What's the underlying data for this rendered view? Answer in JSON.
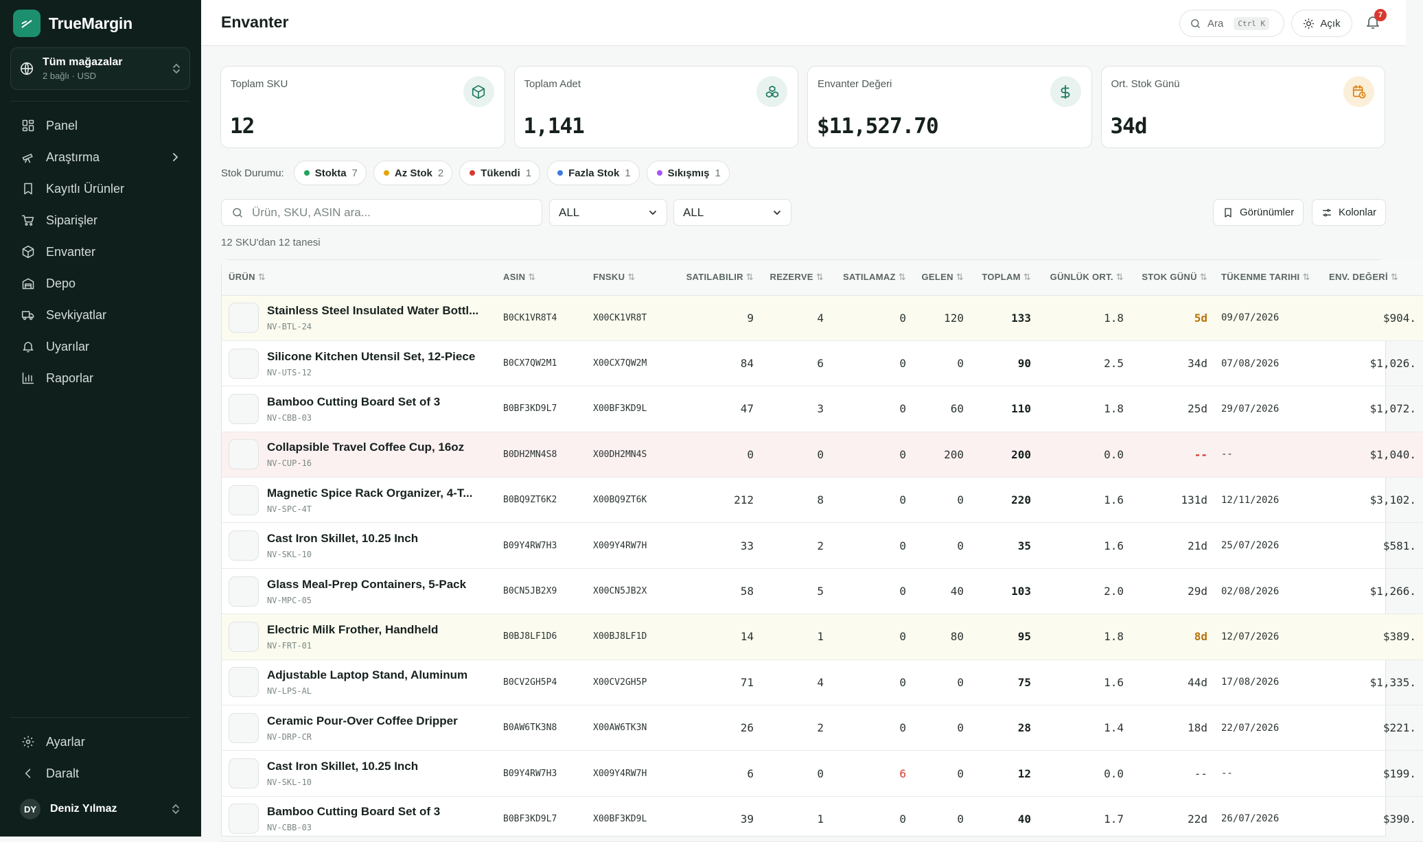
{
  "app": {
    "name": "TrueMargin"
  },
  "store": {
    "title": "Tüm mağazalar",
    "subtitle": "2 bağlı · USD"
  },
  "nav": {
    "items": [
      {
        "label": "Panel",
        "icon": "dashboard-icon"
      },
      {
        "label": "Araştırma",
        "icon": "telescope-icon",
        "has_chevron": true
      },
      {
        "label": "Kayıtlı Ürünler",
        "icon": "bookmark-icon"
      },
      {
        "label": "Siparişler",
        "icon": "cart-icon"
      },
      {
        "label": "Envanter",
        "icon": "box-icon"
      },
      {
        "label": "Depo",
        "icon": "warehouse-icon"
      },
      {
        "label": "Sevkiyatlar",
        "icon": "truck-icon"
      },
      {
        "label": "Uyarılar",
        "icon": "bell-icon"
      },
      {
        "label": "Raporlar",
        "icon": "chart-icon"
      }
    ],
    "bottom": [
      {
        "label": "Ayarlar",
        "icon": "gear-icon"
      },
      {
        "label": "Daralt",
        "icon": "chevron-left-icon"
      }
    ]
  },
  "user": {
    "initials": "DY",
    "name": "Deniz Yılmaz"
  },
  "header": {
    "title": "Envanter",
    "search_label": "Ara",
    "search_shortcut": "Ctrl K",
    "theme_label": "Açık",
    "notification_count": "7"
  },
  "cards": [
    {
      "label": "Toplam SKU",
      "value": "12",
      "icon": "box-icon"
    },
    {
      "label": "Toplam Adet",
      "value": "1,141",
      "icon": "boxes-icon"
    },
    {
      "label": "Envanter Değeri",
      "value": "$11,527.70",
      "icon": "dollar-icon"
    },
    {
      "label": "Ort. Stok Günü",
      "value": "34d",
      "icon": "calendar-clock-icon"
    }
  ],
  "status": {
    "label": "Stok Durumu:",
    "chips": [
      {
        "label": "Stokta",
        "count": "7",
        "color": "#22a55a"
      },
      {
        "label": "Az Stok",
        "count": "2",
        "color": "#e2a408"
      },
      {
        "label": "Tükendi",
        "count": "1",
        "color": "#d9382d"
      },
      {
        "label": "Fazla Stok",
        "count": "1",
        "color": "#3b7be0"
      },
      {
        "label": "Sıkışmış",
        "count": "1",
        "color": "#a855f7"
      }
    ]
  },
  "filters": {
    "search_placeholder": "Ürün, SKU, ASIN ara...",
    "select1": "ALL",
    "select2": "ALL",
    "views_label": "Görünümler",
    "columns_label": "Kolonlar",
    "count_text": "12 SKU'dan 12 tanesi"
  },
  "table": {
    "columns": [
      "ÜRÜN",
      "ASIN",
      "FNSKU",
      "SATILABILIR",
      "REZERVE",
      "SATILAMAZ",
      "GELEN",
      "TOPLAM",
      "GÜNLÜK ORT.",
      "STOK GÜNÜ",
      "TÜKENME TARIHI",
      "ENV. DEĞERİ"
    ],
    "rows": [
      {
        "name": "Stainless Steel Insulated Water Bottl...",
        "sku": "NV-BTL-24",
        "asin": "B0CK1VR8T4",
        "fnsku": "X00CK1VR8T",
        "sellable": "9",
        "reserved": "4",
        "unsellable": "0",
        "inbound": "120",
        "total": "133",
        "daily": "1.8",
        "days": "5d",
        "date": "09/07/2026",
        "value": "$904.",
        "state": "warn"
      },
      {
        "name": "Silicone Kitchen Utensil Set, 12-Piece",
        "sku": "NV-UTS-12",
        "asin": "B0CX7QW2M1",
        "fnsku": "X00CX7QW2M",
        "sellable": "84",
        "reserved": "6",
        "unsellable": "0",
        "inbound": "0",
        "total": "90",
        "daily": "2.5",
        "days": "34d",
        "date": "07/08/2026",
        "value": "$1,026.",
        "state": "ok"
      },
      {
        "name": "Bamboo Cutting Board Set of 3",
        "sku": "NV-CBB-03",
        "asin": "B0BF3KD9L7",
        "fnsku": "X00BF3KD9L",
        "sellable": "47",
        "reserved": "3",
        "unsellable": "0",
        "inbound": "60",
        "total": "110",
        "daily": "1.8",
        "days": "25d",
        "date": "29/07/2026",
        "value": "$1,072.",
        "state": "ok"
      },
      {
        "name": "Collapsible Travel Coffee Cup, 16oz",
        "sku": "NV-CUP-16",
        "asin": "B0DH2MN4S8",
        "fnsku": "X00DH2MN4S",
        "sellable": "0",
        "reserved": "0",
        "unsellable": "0",
        "inbound": "200",
        "total": "200",
        "daily": "0.0",
        "days": "--",
        "date": "--",
        "value": "$1,040.",
        "state": "out"
      },
      {
        "name": "Magnetic Spice Rack Organizer, 4-T...",
        "sku": "NV-SPC-4T",
        "asin": "B0BQ9ZT6K2",
        "fnsku": "X00BQ9ZT6K",
        "sellable": "212",
        "reserved": "8",
        "unsellable": "0",
        "inbound": "0",
        "total": "220",
        "daily": "1.6",
        "days": "131d",
        "date": "12/11/2026",
        "value": "$3,102.",
        "state": "ok"
      },
      {
        "name": "Cast Iron Skillet, 10.25 Inch",
        "sku": "NV-SKL-10",
        "asin": "B09Y4RW7H3",
        "fnsku": "X009Y4RW7H",
        "sellable": "33",
        "reserved": "2",
        "unsellable": "0",
        "inbound": "0",
        "total": "35",
        "daily": "1.6",
        "days": "21d",
        "date": "25/07/2026",
        "value": "$581.",
        "state": "ok"
      },
      {
        "name": "Glass Meal-Prep Containers, 5-Pack",
        "sku": "NV-MPC-05",
        "asin": "B0CN5JB2X9",
        "fnsku": "X00CN5JB2X",
        "sellable": "58",
        "reserved": "5",
        "unsellable": "0",
        "inbound": "40",
        "total": "103",
        "daily": "2.0",
        "days": "29d",
        "date": "02/08/2026",
        "value": "$1,266.",
        "state": "ok"
      },
      {
        "name": "Electric Milk Frother, Handheld",
        "sku": "NV-FRT-01",
        "asin": "B0BJ8LF1D6",
        "fnsku": "X00BJ8LF1D",
        "sellable": "14",
        "reserved": "1",
        "unsellable": "0",
        "inbound": "80",
        "total": "95",
        "daily": "1.8",
        "days": "8d",
        "date": "12/07/2026",
        "value": "$389.",
        "state": "warn"
      },
      {
        "name": "Adjustable Laptop Stand, Aluminum",
        "sku": "NV-LPS-AL",
        "asin": "B0CV2GH5P4",
        "fnsku": "X00CV2GH5P",
        "sellable": "71",
        "reserved": "4",
        "unsellable": "0",
        "inbound": "0",
        "total": "75",
        "daily": "1.6",
        "days": "44d",
        "date": "17/08/2026",
        "value": "$1,335.",
        "state": "ok"
      },
      {
        "name": "Ceramic Pour-Over Coffee Dripper",
        "sku": "NV-DRP-CR",
        "asin": "B0AW6TK3N8",
        "fnsku": "X00AW6TK3N",
        "sellable": "26",
        "reserved": "2",
        "unsellable": "0",
        "inbound": "0",
        "total": "28",
        "daily": "1.4",
        "days": "18d",
        "date": "22/07/2026",
        "value": "$221.",
        "state": "ok"
      },
      {
        "name": "Cast Iron Skillet, 10.25 Inch",
        "sku": "NV-SKL-10",
        "asin": "B09Y4RW7H3",
        "fnsku": "X009Y4RW7H",
        "sellable": "6",
        "reserved": "0",
        "unsellable": "6",
        "inbound": "0",
        "total": "12",
        "daily": "0.0",
        "days": "--",
        "date": "--",
        "value": "$199.",
        "state": "stuck"
      },
      {
        "name": "Bamboo Cutting Board Set of 3",
        "sku": "NV-CBB-03",
        "asin": "B0BF3KD9L7",
        "fnsku": "X00BF3KD9L",
        "sellable": "39",
        "reserved": "1",
        "unsellable": "0",
        "inbound": "0",
        "total": "40",
        "daily": "1.7",
        "days": "22d",
        "date": "26/07/2026",
        "value": "$390.",
        "state": "ok"
      }
    ]
  }
}
